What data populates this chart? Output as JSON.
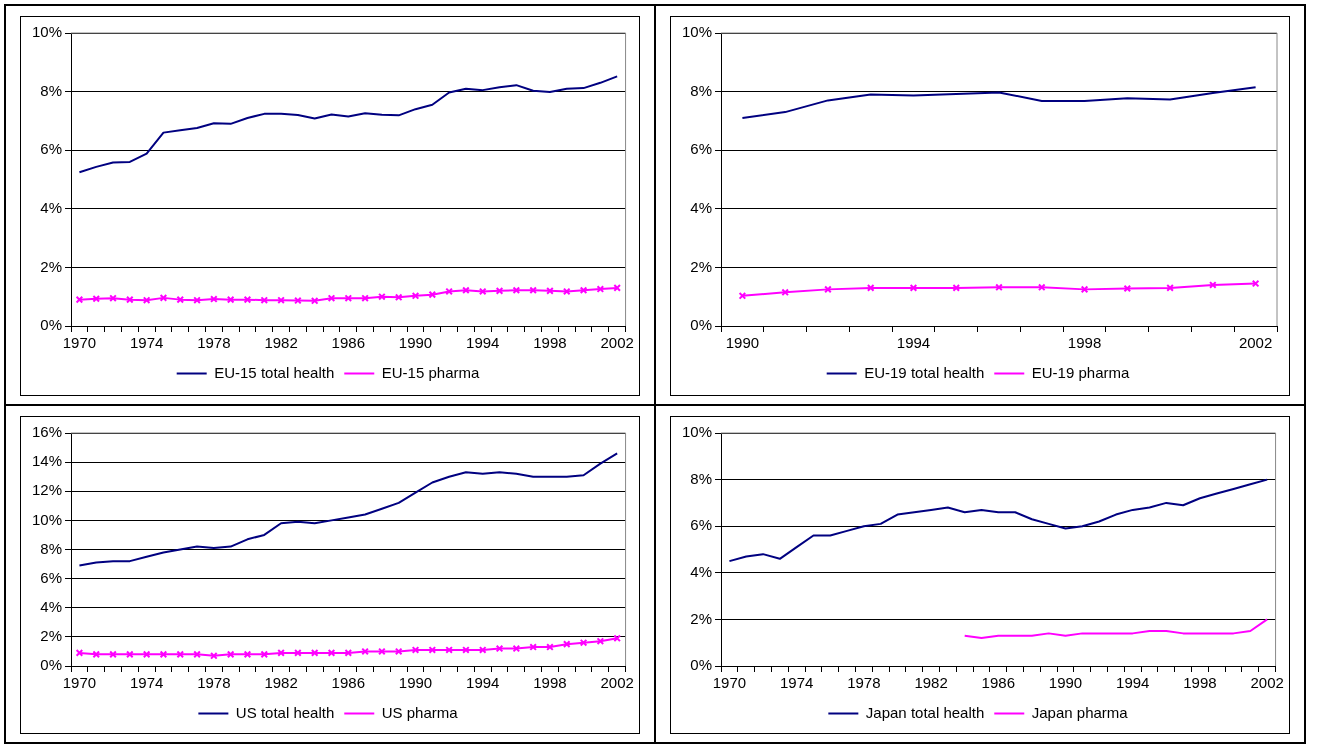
{
  "chart_data": [
    {
      "type": "line",
      "categories": [
        "1970",
        null,
        null,
        null,
        "1974",
        null,
        null,
        null,
        "1978",
        null,
        null,
        null,
        "1982",
        null,
        null,
        null,
        "1986",
        null,
        null,
        null,
        "1990",
        null,
        null,
        null,
        "1994",
        null,
        null,
        null,
        "1998",
        null,
        null,
        null,
        "2002"
      ],
      "series": [
        {
          "name": "EU-15 total health",
          "color": "#000080",
          "marker": "none",
          "values": [
            5.25,
            5.43,
            5.58,
            5.6,
            5.88,
            6.6,
            6.68,
            6.76,
            6.92,
            6.9,
            7.1,
            7.24,
            7.24,
            7.2,
            7.08,
            7.22,
            7.15,
            7.26,
            7.21,
            7.19,
            7.4,
            7.55,
            7.97,
            8.1,
            8.05,
            8.15,
            8.22,
            8.03,
            7.99,
            8.1,
            8.12,
            8.3,
            8.52
          ]
        },
        {
          "name": "EU-15 pharma",
          "color": "#ff00ff",
          "marker": "cross",
          "values": [
            0.9,
            0.93,
            0.95,
            0.9,
            0.88,
            0.96,
            0.9,
            0.88,
            0.92,
            0.9,
            0.9,
            0.88,
            0.88,
            0.87,
            0.86,
            0.95,
            0.95,
            0.95,
            1.0,
            0.98,
            1.03,
            1.07,
            1.18,
            1.22,
            1.18,
            1.2,
            1.22,
            1.22,
            1.2,
            1.18,
            1.22,
            1.26,
            1.3
          ]
        }
      ],
      "ylim": [
        0,
        10
      ],
      "yticks": [
        {
          "value": 0,
          "label": "0%"
        },
        {
          "value": 2,
          "label": "2%"
        },
        {
          "value": 4,
          "label": "4%"
        },
        {
          "value": 6,
          "label": "6%"
        },
        {
          "value": 8,
          "label": "8%"
        },
        {
          "value": 10,
          "label": "10%"
        }
      ],
      "grid": "y",
      "legend": "bottom",
      "line_style": "solid"
    },
    {
      "type": "line",
      "categories": [
        "1990",
        null,
        null,
        null,
        "1994",
        null,
        null,
        null,
        "1998",
        null,
        null,
        null,
        "2002"
      ],
      "series": [
        {
          "name": "EU-19 total health",
          "color": "#000080",
          "marker": "none",
          "values": [
            7.1,
            7.3,
            7.7,
            7.9,
            7.87,
            7.92,
            7.97,
            7.68,
            7.68,
            7.77,
            7.73,
            7.95,
            8.15
          ]
        },
        {
          "name": "EU-19 pharma",
          "color": "#ff00ff",
          "marker": "cross",
          "values": [
            1.03,
            1.15,
            1.25,
            1.3,
            1.3,
            1.3,
            1.32,
            1.32,
            1.25,
            1.28,
            1.3,
            1.4,
            1.45
          ]
        }
      ],
      "ylim": [
        0,
        10
      ],
      "yticks": [
        {
          "value": 0,
          "label": "0%"
        },
        {
          "value": 2,
          "label": "2%"
        },
        {
          "value": 4,
          "label": "4%"
        },
        {
          "value": 6,
          "label": "6%"
        },
        {
          "value": 8,
          "label": "8%"
        },
        {
          "value": 10,
          "label": "10%"
        }
      ],
      "grid": "y",
      "legend": "bottom",
      "line_style": "solid"
    },
    {
      "type": "line",
      "categories": [
        "1970",
        null,
        null,
        null,
        "1974",
        null,
        null,
        null,
        "1978",
        null,
        null,
        null,
        "1982",
        null,
        null,
        null,
        "1986",
        null,
        null,
        null,
        "1990",
        null,
        null,
        null,
        "1994",
        null,
        null,
        null,
        "1998",
        null,
        null,
        null,
        "2002"
      ],
      "series": [
        {
          "name": "US total health",
          "color": "#000080",
          "marker": "none",
          "values": [
            6.9,
            7.1,
            7.2,
            7.2,
            7.5,
            7.8,
            8.0,
            8.2,
            8.1,
            8.2,
            8.7,
            9.0,
            9.8,
            9.9,
            9.8,
            10.0,
            10.2,
            10.4,
            10.8,
            11.2,
            11.9,
            12.6,
            13.0,
            13.3,
            13.2,
            13.3,
            13.2,
            13.0,
            13.0,
            13.0,
            13.1,
            13.9,
            14.6
          ]
        },
        {
          "name": "US pharma",
          "color": "#ff00ff",
          "marker": "cross",
          "values": [
            0.9,
            0.8,
            0.8,
            0.8,
            0.8,
            0.8,
            0.8,
            0.8,
            0.7,
            0.8,
            0.8,
            0.8,
            0.9,
            0.9,
            0.9,
            0.9,
            0.9,
            1.0,
            1.0,
            1.0,
            1.1,
            1.1,
            1.1,
            1.1,
            1.1,
            1.2,
            1.2,
            1.3,
            1.3,
            1.5,
            1.6,
            1.7,
            1.9
          ]
        }
      ],
      "ylim": [
        0,
        16
      ],
      "yticks": [
        {
          "value": 0,
          "label": "0%"
        },
        {
          "value": 2,
          "label": "2%"
        },
        {
          "value": 4,
          "label": "4%"
        },
        {
          "value": 6,
          "label": "6%"
        },
        {
          "value": 8,
          "label": "8%"
        },
        {
          "value": 10,
          "label": "10%"
        },
        {
          "value": 12,
          "label": "12%"
        },
        {
          "value": 14,
          "label": "14%"
        },
        {
          "value": 16,
          "label": "16%"
        }
      ],
      "grid": "y",
      "legend": "bottom",
      "line_style": "solid"
    },
    {
      "type": "line",
      "categories": [
        "1970",
        null,
        null,
        null,
        "1974",
        null,
        null,
        null,
        "1978",
        null,
        null,
        null,
        "1982",
        null,
        null,
        null,
        "1986",
        null,
        null,
        null,
        "1990",
        null,
        null,
        null,
        "1994",
        null,
        null,
        null,
        "1998",
        null,
        null,
        null,
        "2002"
      ],
      "series": [
        {
          "name": "Japan total health",
          "color": "#000080",
          "marker": "none",
          "values": [
            4.5,
            4.7,
            4.8,
            4.6,
            5.1,
            5.6,
            5.6,
            5.8,
            6.0,
            6.1,
            6.5,
            6.6,
            6.7,
            6.8,
            6.6,
            6.7,
            6.6,
            6.6,
            6.3,
            6.1,
            5.9,
            6.0,
            6.2,
            6.5,
            6.7,
            6.8,
            7.0,
            6.9,
            7.2,
            7.4,
            7.6,
            7.8,
            8.0
          ]
        },
        {
          "name": "Japan pharma",
          "color": "#ff00ff",
          "marker": "none",
          "values": [
            null,
            null,
            null,
            null,
            null,
            null,
            null,
            null,
            null,
            null,
            null,
            null,
            null,
            null,
            1.3,
            1.2,
            1.3,
            1.3,
            1.3,
            1.4,
            1.3,
            1.4,
            1.4,
            1.4,
            1.4,
            1.5,
            1.5,
            1.4,
            1.4,
            1.4,
            1.4,
            1.5,
            2.0
          ]
        }
      ],
      "ylim": [
        0,
        10
      ],
      "yticks": [
        {
          "value": 0,
          "label": "0%"
        },
        {
          "value": 2,
          "label": "2%"
        },
        {
          "value": 4,
          "label": "4%"
        },
        {
          "value": 6,
          "label": "6%"
        },
        {
          "value": 8,
          "label": "8%"
        },
        {
          "value": 10,
          "label": "10%"
        }
      ],
      "grid": "y",
      "legend": "bottom",
      "line_style": "solid"
    }
  ]
}
